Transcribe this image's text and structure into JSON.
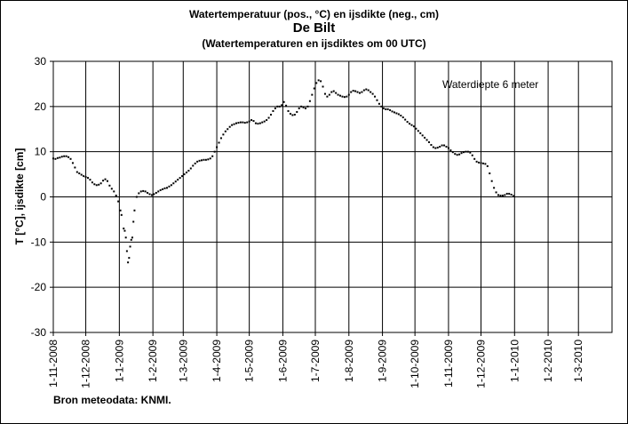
{
  "title_line1": "Watertemperatuur  (pos., °C) en ijsdikte (neg., cm)",
  "title_line2": "De Bilt",
  "title_line3": "(Watertemperaturen  en ijsdiktes om 00 UTC)",
  "source": "Bron meteodata:  KNMI.",
  "chart_data": {
    "type": "scatter",
    "title": "Watertemperatuur  (pos., °C) en ijsdikte (neg., cm)",
    "subtitle": "De Bilt",
    "xlabel": "",
    "ylabel": "T [°C], ijsdikte [cm]",
    "ylim": [
      -30,
      30
    ],
    "yticks": [
      "30",
      "20",
      "10",
      "0",
      "-10",
      "-20",
      "-30"
    ],
    "xlim": [
      "2008-11-01",
      "2010-04-01"
    ],
    "xtick_labels": [
      "1-11-2008",
      "1-12-2008",
      "1-1-2009",
      "1-2-2009",
      "1-3-2009",
      "1-4-2009",
      "1-5-2009",
      "1-6-2009",
      "1-7-2009",
      "1-8-2009",
      "1-9-2009",
      "1-10-2009",
      "1-11-2009",
      "1-12-2009",
      "1-1-2010",
      "1-2-2010",
      "1-3-2010"
    ],
    "grid": true,
    "annotation": "Waterdiepte 6 meter",
    "marker_color": "#000000",
    "series": [
      {
        "points": [
          [
            "2008-11-01",
            8.5
          ],
          [
            "2008-11-03",
            8.4
          ],
          [
            "2008-11-05",
            8.6
          ],
          [
            "2008-11-07",
            8.7
          ],
          [
            "2008-11-09",
            8.9
          ],
          [
            "2008-11-11",
            9.0
          ],
          [
            "2008-11-13",
            9.0
          ],
          [
            "2008-11-15",
            8.8
          ],
          [
            "2008-11-17",
            8.4
          ],
          [
            "2008-11-19",
            7.5
          ],
          [
            "2008-11-21",
            6.5
          ],
          [
            "2008-11-23",
            5.5
          ],
          [
            "2008-11-25",
            5.2
          ],
          [
            "2008-11-27",
            4.9
          ],
          [
            "2008-11-29",
            4.6
          ],
          [
            "2008-12-01",
            4.4
          ],
          [
            "2008-12-03",
            4.2
          ],
          [
            "2008-12-05",
            3.8
          ],
          [
            "2008-12-07",
            3.2
          ],
          [
            "2008-12-09",
            2.8
          ],
          [
            "2008-12-11",
            2.6
          ],
          [
            "2008-12-13",
            2.7
          ],
          [
            "2008-12-15",
            3.0
          ],
          [
            "2008-12-17",
            3.6
          ],
          [
            "2008-12-19",
            3.9
          ],
          [
            "2008-12-21",
            3.5
          ],
          [
            "2008-12-23",
            2.5
          ],
          [
            "2008-12-25",
            1.8
          ],
          [
            "2008-12-27",
            1.2
          ],
          [
            "2008-12-29",
            0.3
          ],
          [
            "2008-12-31",
            -1.0
          ],
          [
            "2009-01-02",
            -3.0
          ],
          [
            "2009-01-03",
            -4.0
          ],
          [
            "2009-01-05",
            -7.0
          ],
          [
            "2009-01-06",
            -7.5
          ],
          [
            "2009-01-07",
            -9.0
          ],
          [
            "2009-01-08",
            -12.0
          ],
          [
            "2009-01-09",
            -14.5
          ],
          [
            "2009-01-10",
            -13.5
          ],
          [
            "2009-01-11",
            -11.0
          ],
          [
            "2009-01-12",
            -9.5
          ],
          [
            "2009-01-13",
            -9.0
          ],
          [
            "2009-01-14",
            -5.5
          ],
          [
            "2009-01-15",
            -3.0
          ],
          [
            "2009-01-17",
            0.0
          ],
          [
            "2009-01-19",
            0.8
          ],
          [
            "2009-01-21",
            1.2
          ],
          [
            "2009-01-23",
            1.3
          ],
          [
            "2009-01-25",
            1.2
          ],
          [
            "2009-01-27",
            0.9
          ],
          [
            "2009-01-29",
            0.6
          ],
          [
            "2009-01-31",
            0.4
          ],
          [
            "2009-02-02",
            0.6
          ],
          [
            "2009-02-04",
            0.9
          ],
          [
            "2009-02-06",
            1.2
          ],
          [
            "2009-02-08",
            1.5
          ],
          [
            "2009-02-10",
            1.7
          ],
          [
            "2009-02-12",
            1.9
          ],
          [
            "2009-02-14",
            2.0
          ],
          [
            "2009-02-16",
            2.3
          ],
          [
            "2009-02-18",
            2.6
          ],
          [
            "2009-02-20",
            3.0
          ],
          [
            "2009-02-22",
            3.4
          ],
          [
            "2009-02-24",
            3.8
          ],
          [
            "2009-02-26",
            4.2
          ],
          [
            "2009-02-28",
            4.6
          ],
          [
            "2009-03-02",
            5.0
          ],
          [
            "2009-03-04",
            5.4
          ],
          [
            "2009-03-06",
            5.8
          ],
          [
            "2009-03-08",
            6.3
          ],
          [
            "2009-03-10",
            6.9
          ],
          [
            "2009-03-12",
            7.4
          ],
          [
            "2009-03-14",
            7.8
          ],
          [
            "2009-03-16",
            8.0
          ],
          [
            "2009-03-18",
            8.1
          ],
          [
            "2009-03-20",
            8.2
          ],
          [
            "2009-03-22",
            8.2
          ],
          [
            "2009-03-24",
            8.3
          ],
          [
            "2009-03-26",
            8.5
          ],
          [
            "2009-03-28",
            9.0
          ],
          [
            "2009-03-30",
            10.0
          ],
          [
            "2009-04-01",
            11.0
          ],
          [
            "2009-04-03",
            12.0
          ],
          [
            "2009-04-05",
            13.0
          ],
          [
            "2009-04-07",
            13.8
          ],
          [
            "2009-04-09",
            14.5
          ],
          [
            "2009-04-11",
            15.0
          ],
          [
            "2009-04-13",
            15.5
          ],
          [
            "2009-04-15",
            15.9
          ],
          [
            "2009-04-17",
            16.1
          ],
          [
            "2009-04-19",
            16.3
          ],
          [
            "2009-04-21",
            16.4
          ],
          [
            "2009-04-23",
            16.5
          ],
          [
            "2009-04-25",
            16.5
          ],
          [
            "2009-04-27",
            16.4
          ],
          [
            "2009-04-29",
            16.5
          ],
          [
            "2009-05-01",
            16.7
          ],
          [
            "2009-05-03",
            17.0
          ],
          [
            "2009-05-05",
            16.8
          ],
          [
            "2009-05-07",
            16.3
          ],
          [
            "2009-05-09",
            16.2
          ],
          [
            "2009-05-11",
            16.3
          ],
          [
            "2009-05-13",
            16.5
          ],
          [
            "2009-05-15",
            16.7
          ],
          [
            "2009-05-17",
            17.0
          ],
          [
            "2009-05-19",
            17.5
          ],
          [
            "2009-05-21",
            18.2
          ],
          [
            "2009-05-23",
            19.0
          ],
          [
            "2009-05-25",
            19.6
          ],
          [
            "2009-05-27",
            20.0
          ],
          [
            "2009-05-29",
            20.0
          ],
          [
            "2009-05-31",
            20.3
          ],
          [
            "2009-06-02",
            21.0
          ],
          [
            "2009-06-04",
            20.2
          ],
          [
            "2009-06-06",
            19.0
          ],
          [
            "2009-06-08",
            18.4
          ],
          [
            "2009-06-10",
            18.1
          ],
          [
            "2009-06-12",
            18.2
          ],
          [
            "2009-06-14",
            18.8
          ],
          [
            "2009-06-16",
            19.6
          ],
          [
            "2009-06-18",
            20.0
          ],
          [
            "2009-06-20",
            19.8
          ],
          [
            "2009-06-22",
            19.6
          ],
          [
            "2009-06-24",
            20.0
          ],
          [
            "2009-06-26",
            21.2
          ],
          [
            "2009-06-28",
            22.6
          ],
          [
            "2009-06-30",
            24.0
          ],
          [
            "2009-07-02",
            25.2
          ],
          [
            "2009-07-04",
            25.8
          ],
          [
            "2009-07-06",
            25.6
          ],
          [
            "2009-07-08",
            24.4
          ],
          [
            "2009-07-10",
            22.8
          ],
          [
            "2009-07-12",
            22.2
          ],
          [
            "2009-07-14",
            22.6
          ],
          [
            "2009-07-16",
            23.2
          ],
          [
            "2009-07-18",
            23.4
          ],
          [
            "2009-07-20",
            23.0
          ],
          [
            "2009-07-22",
            22.6
          ],
          [
            "2009-07-24",
            22.4
          ],
          [
            "2009-07-26",
            22.2
          ],
          [
            "2009-07-28",
            22.1
          ],
          [
            "2009-07-30",
            22.2
          ],
          [
            "2009-08-01",
            22.6
          ],
          [
            "2009-08-03",
            23.2
          ],
          [
            "2009-08-05",
            23.5
          ],
          [
            "2009-08-07",
            23.4
          ],
          [
            "2009-08-09",
            23.2
          ],
          [
            "2009-08-11",
            23.0
          ],
          [
            "2009-08-13",
            23.2
          ],
          [
            "2009-08-15",
            23.6
          ],
          [
            "2009-08-17",
            23.8
          ],
          [
            "2009-08-19",
            23.6
          ],
          [
            "2009-08-21",
            23.2
          ],
          [
            "2009-08-23",
            22.8
          ],
          [
            "2009-08-25",
            22.2
          ],
          [
            "2009-08-27",
            21.4
          ],
          [
            "2009-08-29",
            20.6
          ],
          [
            "2009-08-31",
            20.0
          ],
          [
            "2009-09-02",
            19.6
          ],
          [
            "2009-09-04",
            19.4
          ],
          [
            "2009-09-06",
            19.4
          ],
          [
            "2009-09-08",
            19.2
          ],
          [
            "2009-09-10",
            18.9
          ],
          [
            "2009-09-12",
            18.7
          ],
          [
            "2009-09-14",
            18.5
          ],
          [
            "2009-09-16",
            18.3
          ],
          [
            "2009-09-18",
            18.0
          ],
          [
            "2009-09-20",
            17.6
          ],
          [
            "2009-09-22",
            17.1
          ],
          [
            "2009-09-24",
            16.6
          ],
          [
            "2009-09-26",
            16.2
          ],
          [
            "2009-09-28",
            15.9
          ],
          [
            "2009-09-30",
            15.6
          ],
          [
            "2009-10-02",
            15.1
          ],
          [
            "2009-10-04",
            14.6
          ],
          [
            "2009-10-06",
            14.1
          ],
          [
            "2009-10-08",
            13.6
          ],
          [
            "2009-10-10",
            13.1
          ],
          [
            "2009-10-12",
            12.6
          ],
          [
            "2009-10-14",
            12.1
          ],
          [
            "2009-10-16",
            11.5
          ],
          [
            "2009-10-18",
            11.0
          ],
          [
            "2009-10-20",
            10.8
          ],
          [
            "2009-10-22",
            10.9
          ],
          [
            "2009-10-24",
            11.1
          ],
          [
            "2009-10-26",
            11.4
          ],
          [
            "2009-10-28",
            11.4
          ],
          [
            "2009-10-30",
            11.1
          ],
          [
            "2009-11-01",
            10.8
          ],
          [
            "2009-11-03",
            10.3
          ],
          [
            "2009-11-05",
            9.9
          ],
          [
            "2009-11-07",
            9.5
          ],
          [
            "2009-11-09",
            9.3
          ],
          [
            "2009-11-11",
            9.4
          ],
          [
            "2009-11-13",
            9.7
          ],
          [
            "2009-11-15",
            9.9
          ],
          [
            "2009-11-17",
            10.0
          ],
          [
            "2009-11-19",
            10.0
          ],
          [
            "2009-11-21",
            9.8
          ],
          [
            "2009-11-23",
            9.2
          ],
          [
            "2009-11-25",
            8.4
          ],
          [
            "2009-11-27",
            7.8
          ],
          [
            "2009-11-29",
            7.6
          ],
          [
            "2009-12-01",
            7.5
          ],
          [
            "2009-12-03",
            7.4
          ],
          [
            "2009-12-05",
            7.3
          ],
          [
            "2009-12-07",
            6.8
          ],
          [
            "2009-12-09",
            5.2
          ],
          [
            "2009-12-11",
            3.5
          ],
          [
            "2009-12-13",
            2.0
          ],
          [
            "2009-12-15",
            1.0
          ],
          [
            "2009-12-17",
            0.4
          ],
          [
            "2009-12-19",
            0.3
          ],
          [
            "2009-12-21",
            0.3
          ],
          [
            "2009-12-23",
            0.4
          ],
          [
            "2009-12-25",
            0.7
          ],
          [
            "2009-12-27",
            0.7
          ],
          [
            "2009-12-29",
            0.5
          ],
          [
            "2009-12-31",
            0.2
          ]
        ]
      }
    ]
  }
}
